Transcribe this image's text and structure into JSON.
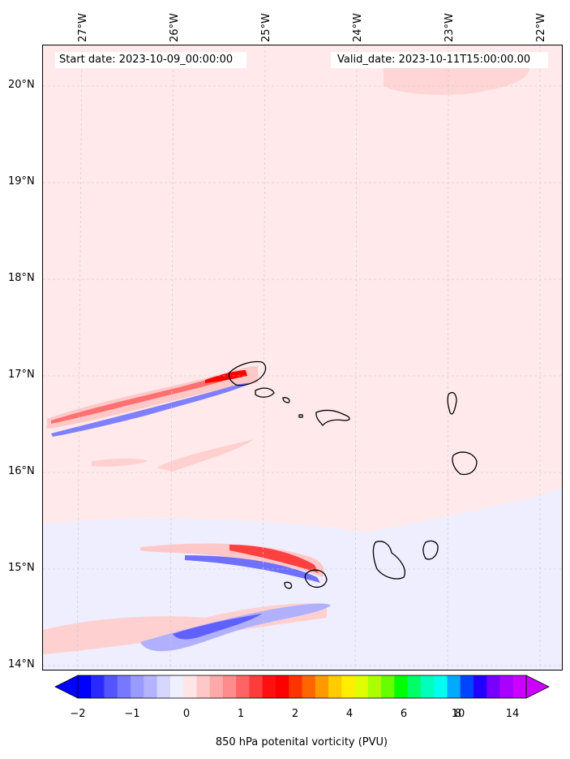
{
  "header": {
    "start_date": "Start date: 2023-10-09_00:00:00",
    "valid_date": "Valid_date: 2023-10-11T15:00:00.00"
  },
  "longitude_labels": [
    "27°W",
    "26°W",
    "25°W",
    "24°W",
    "23°W",
    "22°W"
  ],
  "latitude_labels": [
    "20°N",
    "19°N",
    "18°N",
    "17°N",
    "16°N",
    "15°N",
    "14°N"
  ],
  "colorbar": {
    "label": "850 hPa potenital vorticity (PVU)",
    "tick_labels": [
      "−2",
      "−1",
      "0",
      "1",
      "2",
      "4",
      "6",
      "8",
      "10",
      "14"
    ],
    "colors": [
      "#0000ff",
      "#2a2aff",
      "#5555ff",
      "#7777ff",
      "#9999ff",
      "#b3b3ff",
      "#d6d6ff",
      "#efefff",
      "#ffe6e6",
      "#ffc8c8",
      "#ffaaaa",
      "#ff8c8c",
      "#ff6464",
      "#ff3c3c",
      "#ff1010",
      "#ff0000",
      "#ff3300",
      "#ff6600",
      "#ff9900",
      "#ffcc00",
      "#ffee00",
      "#ddff00",
      "#aaff00",
      "#66ff00",
      "#00ff00",
      "#00ff66",
      "#00ffbb",
      "#00ffee",
      "#00aaff",
      "#0044ff",
      "#2200ff",
      "#7700ff",
      "#aa00ff",
      "#cc00ff"
    ]
  },
  "fill_colors": {
    "background": "#ffe9ea",
    "light_blue": "#eeeeff",
    "blue": "#8f8fff",
    "dark_blue": "#3030ff",
    "pink": "#ffcccc",
    "red": "#ff5050",
    "dark_red": "#ff0000"
  }
}
